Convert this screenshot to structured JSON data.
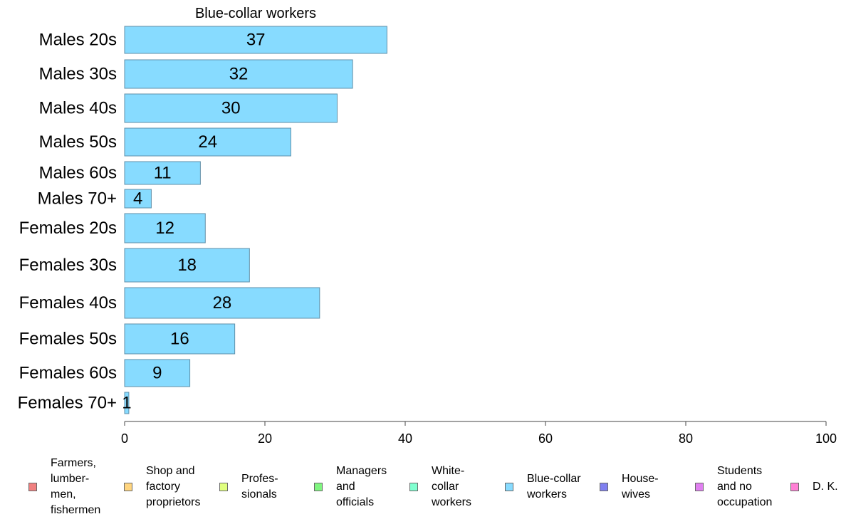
{
  "chart_data": {
    "type": "bar",
    "orientation": "horizontal",
    "title": "Blue-collar workers",
    "categories": [
      "Males 20s",
      "Males 30s",
      "Males 40s",
      "Males 50s",
      "Males 60s",
      "Males 70+",
      "Females 20s",
      "Females 30s",
      "Females 40s",
      "Females 50s",
      "Females 60s",
      "Females 70+"
    ],
    "values": [
      37.4,
      32.5,
      30.3,
      23.7,
      10.8,
      3.8,
      11.5,
      17.8,
      27.8,
      15.7,
      9.3,
      0.6
    ],
    "data_labels": [
      "37",
      "32",
      "30",
      "24",
      "11",
      "4",
      "12",
      "18",
      "28",
      "16",
      "9",
      "1"
    ],
    "xlim": [
      0,
      100
    ],
    "xticks": [
      0,
      20,
      40,
      60,
      80,
      100
    ],
    "bar_color": "#87DBFF",
    "bar_edge_color": "#5f8fa8",
    "grid": false,
    "legend_position": "bottom",
    "legend": [
      {
        "label": "Farmers,\nlumber-\nmen,\nfishermen",
        "color": "#F08080"
      },
      {
        "label": "Shop and\nfactory\nproprietors",
        "color": "#FFD57F"
      },
      {
        "label": "Profes-\nsionals",
        "color": "#E0FF7F"
      },
      {
        "label": "Managers\nand\nofficials",
        "color": "#80F580"
      },
      {
        "label": "White-\ncollar\nworkers",
        "color": "#80FFD0"
      },
      {
        "label": "Blue-collar\nworkers",
        "color": "#87DBFF"
      },
      {
        "label": "House-\nwives",
        "color": "#8080F0"
      },
      {
        "label": "Students\nand no\noccupation",
        "color": "#E07FF0"
      },
      {
        "label": "D. K.",
        "color": "#FF80D5"
      }
    ]
  }
}
